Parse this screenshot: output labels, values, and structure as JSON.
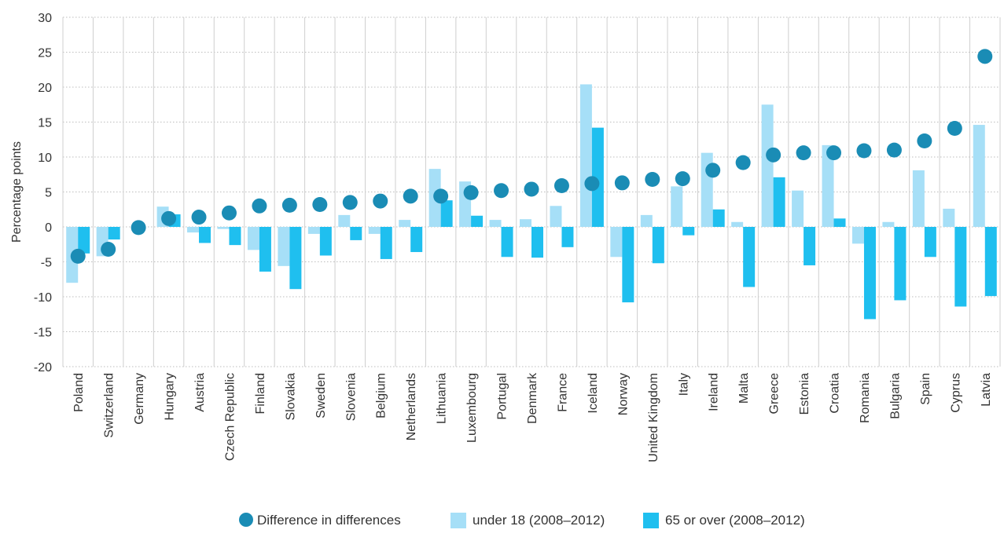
{
  "chart_data": {
    "type": "bar",
    "ylabel": "Percentage points",
    "ylim": [
      -20,
      30
    ],
    "yticks": [
      30,
      25,
      20,
      15,
      10,
      5,
      0,
      -5,
      -10,
      -15,
      -20
    ],
    "grid": true,
    "legend_position": "bottom-center",
    "categories": [
      "Poland",
      "Switzerland",
      "Germany",
      "Hungary",
      "Austria",
      "Czech Republic",
      "Finland",
      "Slovakia",
      "Sweden",
      "Slovenia",
      "Belgium",
      "Netherlands",
      "Lithuania",
      "Luxembourg",
      "Portugal",
      "Denmark",
      "France",
      "Iceland",
      "Norway",
      "United Kingdom",
      "Italy",
      "Ireland",
      "Malta",
      "Greece",
      "Estonia",
      "Croatia",
      "Romania",
      "Bulgaria",
      "Spain",
      "Cyprus",
      "Latvia"
    ],
    "series": [
      {
        "name": "Difference in differences",
        "type": "scatter",
        "color": "#1a8cb5",
        "values": [
          -4.2,
          -3.2,
          -0.1,
          1.2,
          1.4,
          2.0,
          3.0,
          3.1,
          3.2,
          3.5,
          3.7,
          4.4,
          4.4,
          4.9,
          5.2,
          5.4,
          5.9,
          6.2,
          6.3,
          6.8,
          6.9,
          8.1,
          9.2,
          10.3,
          10.6,
          10.6,
          10.9,
          11.0,
          12.3,
          14.1,
          24.4
        ]
      },
      {
        "name": "under 18 (2008–2012)",
        "type": "bar",
        "color": "#a6dff7",
        "values": [
          -8.0,
          -4.2,
          0.0,
          2.9,
          -0.8,
          -0.3,
          -3.3,
          -5.6,
          -1.0,
          1.7,
          -1.0,
          1.0,
          8.3,
          6.5,
          1.0,
          1.1,
          3.0,
          20.4,
          -4.3,
          1.7,
          5.8,
          10.6,
          0.7,
          17.5,
          5.2,
          11.7,
          -2.4,
          0.7,
          8.1,
          2.6,
          14.6
        ]
      },
      {
        "name": "65 or over (2008–2012)",
        "type": "bar",
        "color": "#1fbfef",
        "values": [
          -3.8,
          -1.8,
          0.0,
          1.8,
          -2.3,
          -2.6,
          -6.4,
          -8.9,
          -4.1,
          -1.9,
          -4.6,
          -3.6,
          3.8,
          1.6,
          -4.3,
          -4.4,
          -2.9,
          14.2,
          -10.8,
          -5.2,
          -1.2,
          2.5,
          -8.6,
          7.1,
          -5.5,
          1.2,
          -13.2,
          -10.5,
          -4.3,
          -11.4,
          -9.9
        ]
      }
    ]
  }
}
